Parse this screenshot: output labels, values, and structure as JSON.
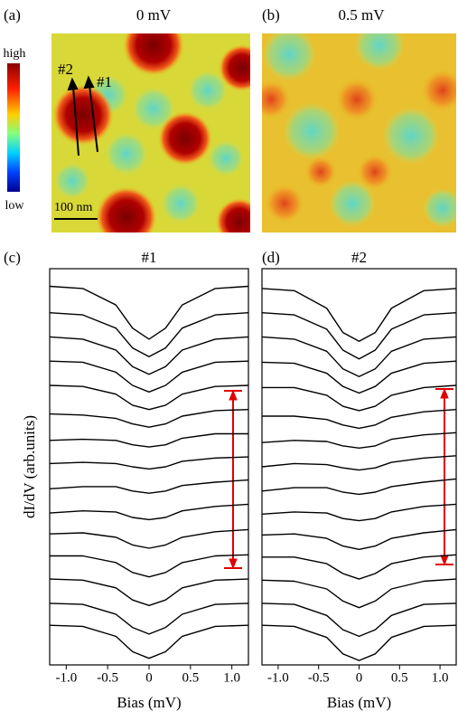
{
  "maps": [
    {
      "label": "(a)",
      "title": "0 mV"
    },
    {
      "label": "(b)",
      "title": "0.5 mV"
    }
  ],
  "colorbar": {
    "high": "high",
    "low": "low"
  },
  "scale_bar": "100 nm",
  "arrow_labels": [
    "#2",
    "#1"
  ],
  "chart_data": [
    {
      "type": "line",
      "panel_label": "(c)",
      "title": "#1",
      "xlabel": "Bias (mV)",
      "ylabel": "dI/dV (arb.units)",
      "xlim": [
        -1.2,
        1.2
      ],
      "ylim": [
        0,
        36
      ],
      "xticks": [
        {
          "value": -1,
          "label": "-1.0"
        },
        -0.5,
        0,
        0.5,
        {
          "value": 1,
          "label": "1.0"
        }
      ],
      "x": [
        -1.2,
        -0.8,
        -0.4,
        -0.2,
        0,
        0.2,
        0.4,
        0.8,
        1.2
      ],
      "series": [
        {
          "color": "#000",
          "values": [
            34.4,
            34.2,
            32.7,
            30.6,
            29.6,
            30.6,
            32.7,
            34.2,
            34.4
          ]
        },
        {
          "color": "#000",
          "values": [
            32,
            31.8,
            30.6,
            28.8,
            28,
            28.8,
            30.6,
            31.8,
            32
          ]
        },
        {
          "color": "#000",
          "values": [
            29.8,
            29.6,
            28.6,
            27.1,
            26.4,
            27.1,
            28.6,
            29.6,
            29.8
          ]
        },
        {
          "color": "#000",
          "values": [
            27.6,
            27.5,
            26.6,
            25.4,
            24.8,
            25.4,
            26.6,
            27.5,
            27.6
          ]
        },
        {
          "color": "#000",
          "values": [
            25.4,
            25.3,
            24.6,
            23.6,
            23.2,
            23.6,
            24.6,
            25.3,
            25.4
          ]
        },
        {
          "color": "#000",
          "values": [
            22.8,
            22.7,
            22.4,
            21.9,
            21.6,
            21.9,
            22.6,
            23.1,
            23.2
          ]
        },
        {
          "color": "#000",
          "values": [
            20.4,
            20.5,
            20.4,
            20.0,
            19.8,
            20.0,
            20.6,
            21.0,
            21.0
          ]
        },
        {
          "color": "#000",
          "values": [
            18.3,
            18.4,
            18.3,
            18.0,
            17.8,
            18.0,
            18.5,
            18.8,
            18.9
          ]
        },
        {
          "color": "#000",
          "values": [
            16.0,
            16.2,
            16.2,
            15.8,
            15.6,
            15.8,
            16.3,
            16.6,
            16.8
          ]
        },
        {
          "color": "#000",
          "values": [
            13.8,
            14.0,
            13.9,
            13.4,
            13.2,
            13.4,
            14.0,
            14.4,
            14.6
          ]
        },
        {
          "color": "#000",
          "values": [
            11.9,
            12.0,
            11.6,
            10.9,
            10.6,
            10.9,
            11.6,
            12.1,
            12.3
          ]
        },
        {
          "color": "#000",
          "values": [
            9.9,
            9.9,
            9.3,
            8.4,
            8.0,
            8.4,
            9.3,
            9.9,
            10.0
          ]
        },
        {
          "color": "#000",
          "values": [
            7.8,
            7.7,
            7.0,
            5.9,
            5.4,
            5.9,
            7.0,
            7.7,
            7.8
          ]
        },
        {
          "color": "#000",
          "values": [
            5.6,
            5.5,
            4.6,
            3.4,
            2.8,
            3.4,
            4.6,
            5.5,
            5.6
          ]
        },
        {
          "color": "#000",
          "values": [
            3.6,
            3.5,
            2.6,
            1.2,
            0.6,
            1.2,
            2.6,
            3.5,
            3.6
          ]
        }
      ]
    },
    {
      "type": "line",
      "panel_label": "(d)",
      "title": "#2",
      "xlabel": "Bias (mV)",
      "ylabel": "dI/dV (arb.units)",
      "xlim": [
        -1.2,
        1.2
      ],
      "ylim": [
        0,
        36
      ],
      "xticks": [
        {
          "value": -1,
          "label": "-1.0"
        },
        -0.5,
        0,
        0.5,
        {
          "value": 1,
          "label": "1.0"
        }
      ],
      "x": [
        -1.2,
        -0.8,
        -0.4,
        -0.2,
        0,
        0.2,
        0.4,
        0.8,
        1.2
      ],
      "series": [
        {
          "color": "#000",
          "values": [
            34.2,
            34.0,
            32.4,
            30.2,
            29.4,
            30.2,
            32.4,
            34.0,
            34.2
          ]
        },
        {
          "color": "#000",
          "values": [
            32.0,
            31.8,
            30.5,
            28.6,
            27.8,
            28.6,
            30.5,
            31.8,
            32.0
          ]
        },
        {
          "color": "#000",
          "values": [
            29.8,
            29.6,
            28.5,
            26.9,
            26.2,
            26.9,
            28.5,
            29.6,
            29.8
          ]
        },
        {
          "color": "#000",
          "values": [
            27.5,
            27.4,
            26.5,
            25.3,
            24.7,
            25.3,
            26.5,
            27.4,
            27.6
          ]
        },
        {
          "color": "#000",
          "values": [
            25.2,
            25.2,
            24.5,
            23.5,
            23.1,
            23.5,
            24.5,
            25.2,
            25.4
          ]
        },
        {
          "color": "#000",
          "values": [
            22.6,
            22.6,
            22.3,
            21.8,
            21.5,
            21.8,
            22.5,
            23.0,
            23.2
          ]
        },
        {
          "color": "#000",
          "values": [
            20.2,
            20.4,
            20.3,
            19.9,
            19.7,
            19.9,
            20.5,
            20.9,
            21.1
          ]
        },
        {
          "color": "#000",
          "values": [
            18.0,
            18.3,
            18.2,
            17.9,
            17.7,
            17.9,
            18.4,
            18.8,
            19.0
          ]
        },
        {
          "color": "#000",
          "values": [
            15.8,
            16.1,
            16.1,
            15.7,
            15.5,
            15.7,
            16.2,
            16.6,
            16.9
          ]
        },
        {
          "color": "#000",
          "values": [
            13.7,
            13.9,
            13.8,
            13.3,
            13.1,
            13.3,
            13.9,
            14.4,
            14.6
          ]
        },
        {
          "color": "#000",
          "values": [
            11.8,
            11.9,
            11.5,
            10.8,
            10.5,
            10.8,
            11.5,
            12.0,
            12.3
          ]
        },
        {
          "color": "#000",
          "values": [
            9.8,
            9.8,
            9.2,
            8.3,
            7.8,
            8.3,
            9.2,
            9.8,
            10.0
          ]
        },
        {
          "color": "#000",
          "values": [
            7.7,
            7.6,
            6.9,
            5.8,
            5.2,
            5.8,
            6.9,
            7.6,
            7.8
          ]
        },
        {
          "color": "#000",
          "values": [
            5.6,
            5.5,
            4.5,
            3.2,
            2.6,
            3.2,
            4.5,
            5.5,
            5.6
          ]
        },
        {
          "color": "#000",
          "values": [
            3.6,
            3.5,
            2.5,
            1.0,
            0.4,
            1.0,
            2.5,
            3.5,
            3.6
          ]
        }
      ]
    }
  ]
}
